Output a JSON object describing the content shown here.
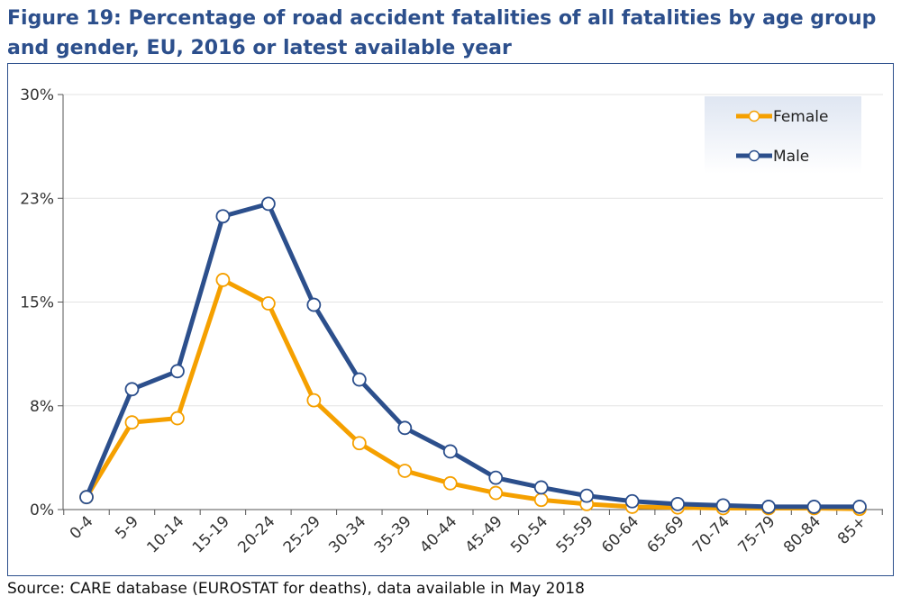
{
  "header": {
    "title": "Figure 19: Percentage of road accident fatalities of all fatalities by age group and gender, EU, 2016 or latest available year"
  },
  "footer": {
    "source": "Source: CARE database (EUROSTAT for deaths), data available in May 2018"
  },
  "colors": {
    "female": "#f5a000",
    "male": "#2c4f8c",
    "title": "#2c4f8c"
  },
  "chart_data": {
    "type": "line",
    "title": "Figure 19: Percentage of road accident fatalities of all fatalities by age group and gender, EU, 2016 or latest available year",
    "xlabel": "",
    "ylabel": "",
    "ylim": [
      0,
      30
    ],
    "yticks": [
      0,
      7.5,
      15,
      22.5,
      30
    ],
    "ytick_labels": [
      "0%",
      "8%",
      "15%",
      "23%",
      "30%"
    ],
    "grid": true,
    "legend_position": "top-right",
    "categories": [
      "0-4",
      "5-9",
      "10-14",
      "15-19",
      "20-24",
      "25-29",
      "30-34",
      "35-39",
      "40-44",
      "45-49",
      "50-54",
      "55-59",
      "60-64",
      "65-69",
      "70-74",
      "75-79",
      "80-84",
      "85+"
    ],
    "series": [
      {
        "name": "Female",
        "values": [
          0.9,
          6.3,
          6.6,
          16.6,
          14.9,
          7.9,
          4.8,
          2.8,
          1.9,
          1.2,
          0.7,
          0.4,
          0.2,
          0.15,
          0.1,
          0.1,
          0.1,
          0.05
        ]
      },
      {
        "name": "Male",
        "values": [
          0.9,
          8.7,
          10.0,
          21.2,
          22.1,
          14.8,
          9.4,
          5.9,
          4.2,
          2.3,
          1.6,
          1.0,
          0.6,
          0.4,
          0.3,
          0.2,
          0.2,
          0.2
        ]
      }
    ]
  }
}
